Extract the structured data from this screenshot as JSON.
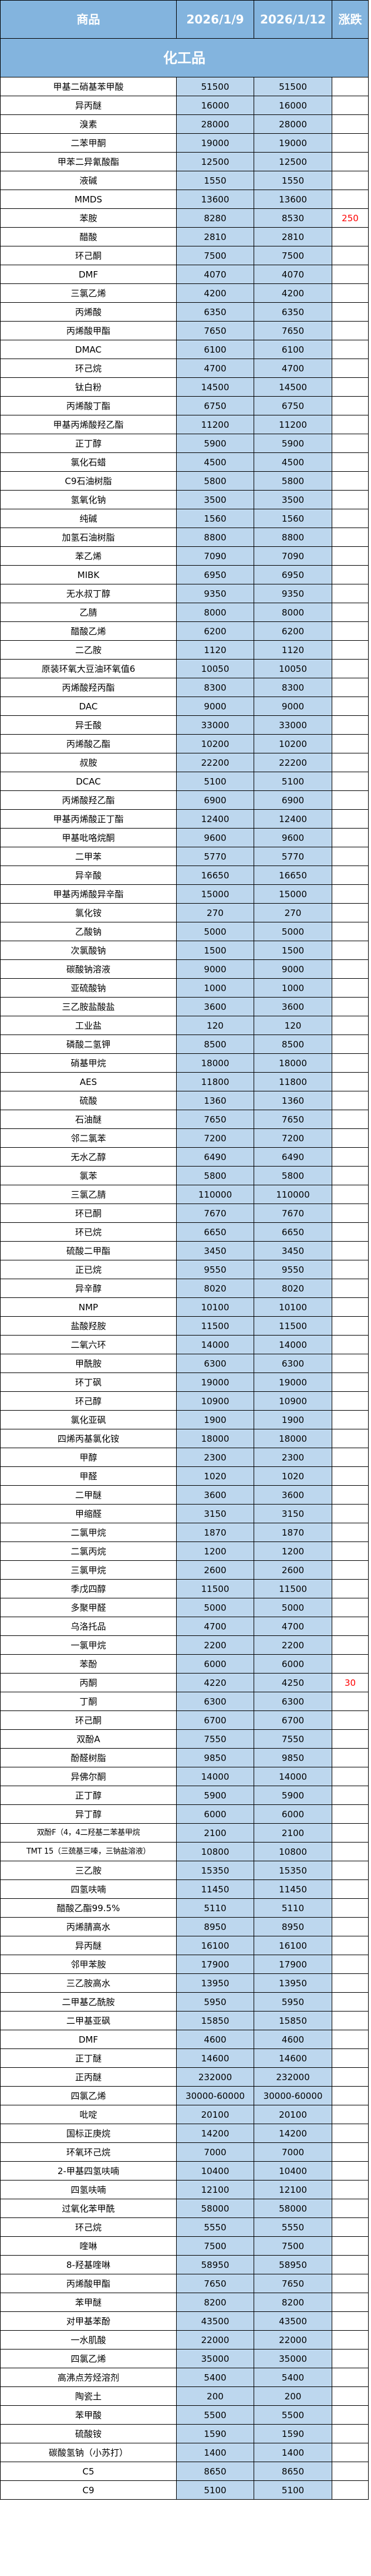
{
  "header": {
    "product": "商品",
    "date1": "2026/1/9",
    "date2": "2026/1/12",
    "change": "涨跌"
  },
  "section_title": "化工品",
  "colors": {
    "header_bg": "#83B4DE",
    "value_bg": "#BDD7EE",
    "up": "#FF0000"
  },
  "rows": [
    [
      "甲基二硝基苯甲酸",
      "51500",
      "51500",
      ""
    ],
    [
      "异丙醚",
      "16000",
      "16000",
      ""
    ],
    [
      "溴素",
      "28000",
      "28000",
      ""
    ],
    [
      "二苯甲酮",
      "19000",
      "19000",
      ""
    ],
    [
      "甲苯二异氰酸酯",
      "12500",
      "12500",
      ""
    ],
    [
      "液碱",
      "1550",
      "1550",
      ""
    ],
    [
      "MMDS",
      "13600",
      "13600",
      ""
    ],
    [
      "苯胺",
      "8280",
      "8530",
      "250"
    ],
    [
      "醋酸",
      "2810",
      "2810",
      ""
    ],
    [
      "环己酮",
      "7500",
      "7500",
      ""
    ],
    [
      "DMF",
      "4070",
      "4070",
      ""
    ],
    [
      "三氯乙烯",
      "4200",
      "4200",
      ""
    ],
    [
      "丙烯酸",
      "6350",
      "6350",
      ""
    ],
    [
      "丙烯酸甲酯",
      "7650",
      "7650",
      ""
    ],
    [
      "DMAC",
      "6100",
      "6100",
      ""
    ],
    [
      "环己烷",
      "4700",
      "4700",
      ""
    ],
    [
      "钛白粉",
      "14500",
      "14500",
      ""
    ],
    [
      "丙烯酸丁酯",
      "6750",
      "6750",
      ""
    ],
    [
      "甲基丙烯酸羟乙酯",
      "11200",
      "11200",
      ""
    ],
    [
      "正丁醇",
      "5900",
      "5900",
      ""
    ],
    [
      "氯化石蜡",
      "4500",
      "4500",
      ""
    ],
    [
      "C9石油树脂",
      "5800",
      "5800",
      ""
    ],
    [
      "氢氧化钠",
      "3500",
      "3500",
      ""
    ],
    [
      "纯碱",
      "1560",
      "1560",
      ""
    ],
    [
      "加氢石油树脂",
      "8800",
      "8800",
      ""
    ],
    [
      "苯乙烯",
      "7090",
      "7090",
      ""
    ],
    [
      "MIBK",
      "6950",
      "6950",
      ""
    ],
    [
      "无水叔丁醇",
      "9350",
      "9350",
      ""
    ],
    [
      "乙腈",
      "8000",
      "8000",
      ""
    ],
    [
      "醋酸乙烯",
      "6200",
      "6200",
      ""
    ],
    [
      "二乙胺",
      "1120",
      "1120",
      ""
    ],
    [
      "原装环氧大豆油环氧值6",
      "10050",
      "10050",
      ""
    ],
    [
      "丙烯酸羟丙酯",
      "8300",
      "8300",
      ""
    ],
    [
      "DAC",
      "9000",
      "9000",
      ""
    ],
    [
      "异壬酸",
      "33000",
      "33000",
      ""
    ],
    [
      "丙烯酸乙酯",
      "10200",
      "10200",
      ""
    ],
    [
      "叔胺",
      "22200",
      "22200",
      ""
    ],
    [
      "DCAC",
      "5100",
      "5100",
      ""
    ],
    [
      "丙烯酸羟乙酯",
      "6900",
      "6900",
      ""
    ],
    [
      "甲基丙烯酸正丁酯",
      "12400",
      "12400",
      ""
    ],
    [
      "甲基吡咯烷酮",
      "9600",
      "9600",
      ""
    ],
    [
      "二甲苯",
      "5770",
      "5770",
      ""
    ],
    [
      "异辛酸",
      "16650",
      "16650",
      ""
    ],
    [
      "甲基丙烯酸异辛酯",
      "15000",
      "15000",
      ""
    ],
    [
      "氯化铵",
      "270",
      "270",
      ""
    ],
    [
      "乙酸钠",
      "5000",
      "5000",
      ""
    ],
    [
      "次氯酸钠",
      "1500",
      "1500",
      ""
    ],
    [
      "碳酸钠溶液",
      "9000",
      "9000",
      ""
    ],
    [
      "亚硫酸钠",
      "1000",
      "1000",
      ""
    ],
    [
      "三乙胺盐酸盐",
      "3600",
      "3600",
      ""
    ],
    [
      "工业盐",
      "120",
      "120",
      ""
    ],
    [
      "磷酸二氢钾",
      "8500",
      "8500",
      ""
    ],
    [
      "硝基甲烷",
      "18000",
      "18000",
      ""
    ],
    [
      "AES",
      "11800",
      "11800",
      ""
    ],
    [
      "硫酸",
      "1360",
      "1360",
      ""
    ],
    [
      "石油醚",
      "7650",
      "7650",
      ""
    ],
    [
      "邻二氯苯",
      "7200",
      "7200",
      ""
    ],
    [
      "无水乙醇",
      "6490",
      "6490",
      ""
    ],
    [
      "氯苯",
      "5800",
      "5800",
      ""
    ],
    [
      "三氯乙腈",
      "110000",
      "110000",
      ""
    ],
    [
      "环已酮",
      "7670",
      "7670",
      ""
    ],
    [
      "环已烷",
      "6650",
      "6650",
      ""
    ],
    [
      "硫酸二甲酯",
      "3450",
      "3450",
      ""
    ],
    [
      "正已烷",
      "9550",
      "9550",
      ""
    ],
    [
      "异辛醇",
      "8020",
      "8020",
      ""
    ],
    [
      "NMP",
      "10100",
      "10100",
      ""
    ],
    [
      "盐酸羟胺",
      "11500",
      "11500",
      ""
    ],
    [
      "二氧六环",
      "14000",
      "14000",
      ""
    ],
    [
      "甲酰胺",
      "6300",
      "6300",
      ""
    ],
    [
      "环丁砜",
      "19000",
      "19000",
      ""
    ],
    [
      "环己醇",
      "10900",
      "10900",
      ""
    ],
    [
      "氯化亚砜",
      "1900",
      "1900",
      ""
    ],
    [
      "四烯丙基氯化铵",
      "18000",
      "18000",
      ""
    ],
    [
      "甲醇",
      "2300",
      "2300",
      ""
    ],
    [
      "甲醛",
      "1020",
      "1020",
      ""
    ],
    [
      "二甲醚",
      "3600",
      "3600",
      ""
    ],
    [
      "甲缩醛",
      "3150",
      "3150",
      ""
    ],
    [
      "二氯甲烷",
      "1870",
      "1870",
      ""
    ],
    [
      "二氯丙烷",
      "1200",
      "1200",
      ""
    ],
    [
      "三氯甲烷",
      "2600",
      "2600",
      ""
    ],
    [
      "季戊四醇",
      "11500",
      "11500",
      ""
    ],
    [
      "多聚甲醛",
      "5000",
      "5000",
      ""
    ],
    [
      "乌洛托品",
      "4700",
      "4700",
      ""
    ],
    [
      "一氯甲烷",
      "2200",
      "2200",
      ""
    ],
    [
      "苯酚",
      "6000",
      "6000",
      ""
    ],
    [
      "丙酮",
      "4220",
      "4250",
      "30"
    ],
    [
      "丁酮",
      "6300",
      "6300",
      ""
    ],
    [
      "环己酮",
      "6700",
      "6700",
      ""
    ],
    [
      "双酚A",
      "7550",
      "7550",
      ""
    ],
    [
      "酚醛树脂",
      "9850",
      "9850",
      ""
    ],
    [
      "异佛尔酮",
      "14000",
      "14000",
      ""
    ],
    [
      "正丁醇",
      "5900",
      "5900",
      ""
    ],
    [
      "异丁醇",
      "6000",
      "6000",
      ""
    ],
    [
      "双酚F（4，4二羟基二苯基甲烷",
      "2100",
      "2100",
      ""
    ],
    [
      "TMT 15（三巯基三嗪，三钠盐溶液）",
      "10800",
      "10800",
      ""
    ],
    [
      "三乙胺",
      "15350",
      "15350",
      ""
    ],
    [
      "四氢呋喃",
      "11450",
      "11450",
      ""
    ],
    [
      "醋酸乙酯99.5%",
      "5110",
      "5110",
      ""
    ],
    [
      "丙烯腈高水",
      "8950",
      "8950",
      ""
    ],
    [
      "异丙醚",
      "16100",
      "16100",
      ""
    ],
    [
      "邻甲苯胺",
      "17900",
      "17900",
      ""
    ],
    [
      "三乙胺高水",
      "13950",
      "13950",
      ""
    ],
    [
      "二甲基乙酰胺",
      "5950",
      "5950",
      ""
    ],
    [
      "二甲基亚砜",
      "15850",
      "15850",
      ""
    ],
    [
      "DMF",
      "4600",
      "4600",
      ""
    ],
    [
      "正丁醚",
      "14600",
      "14600",
      ""
    ],
    [
      "正丙醚",
      "232000",
      "232000",
      ""
    ],
    [
      "四氯乙烯",
      "30000-60000",
      "30000-60000",
      ""
    ],
    [
      "吡啶",
      "20100",
      "20100",
      ""
    ],
    [
      "国标正庚烷",
      "14200",
      "14200",
      ""
    ],
    [
      "环氧环己烷",
      "7000",
      "7000",
      ""
    ],
    [
      "2-甲基四氢呋喃",
      "10400",
      "10400",
      ""
    ],
    [
      "四氢呋喃",
      "12100",
      "12100",
      ""
    ],
    [
      "过氧化苯甲酰",
      "58000",
      "58000",
      ""
    ],
    [
      "环己烷",
      "5550",
      "5550",
      ""
    ],
    [
      "喹啉",
      "7500",
      "7500",
      ""
    ],
    [
      "8-羟基喹啉",
      "58950",
      "58950",
      ""
    ],
    [
      "丙烯酸甲酯",
      "7650",
      "7650",
      ""
    ],
    [
      "苯甲醚",
      "8200",
      "8200",
      ""
    ],
    [
      "对甲基苯酚",
      "43500",
      "43500",
      ""
    ],
    [
      "一水肌酸",
      "22000",
      "22000",
      ""
    ],
    [
      "四氯乙烯",
      "35000",
      "35000",
      ""
    ],
    [
      "高沸点芳烃溶剂",
      "5400",
      "5400",
      ""
    ],
    [
      "陶瓷土",
      "200",
      "200",
      ""
    ],
    [
      "苯甲酸",
      "5500",
      "5500",
      ""
    ],
    [
      "硫酸铵",
      "1590",
      "1590",
      ""
    ],
    [
      "碳酸氢钠（小苏打）",
      "1400",
      "1400",
      ""
    ],
    [
      "C5",
      "8650",
      "8650",
      ""
    ],
    [
      "C9",
      "5100",
      "5100",
      ""
    ]
  ]
}
